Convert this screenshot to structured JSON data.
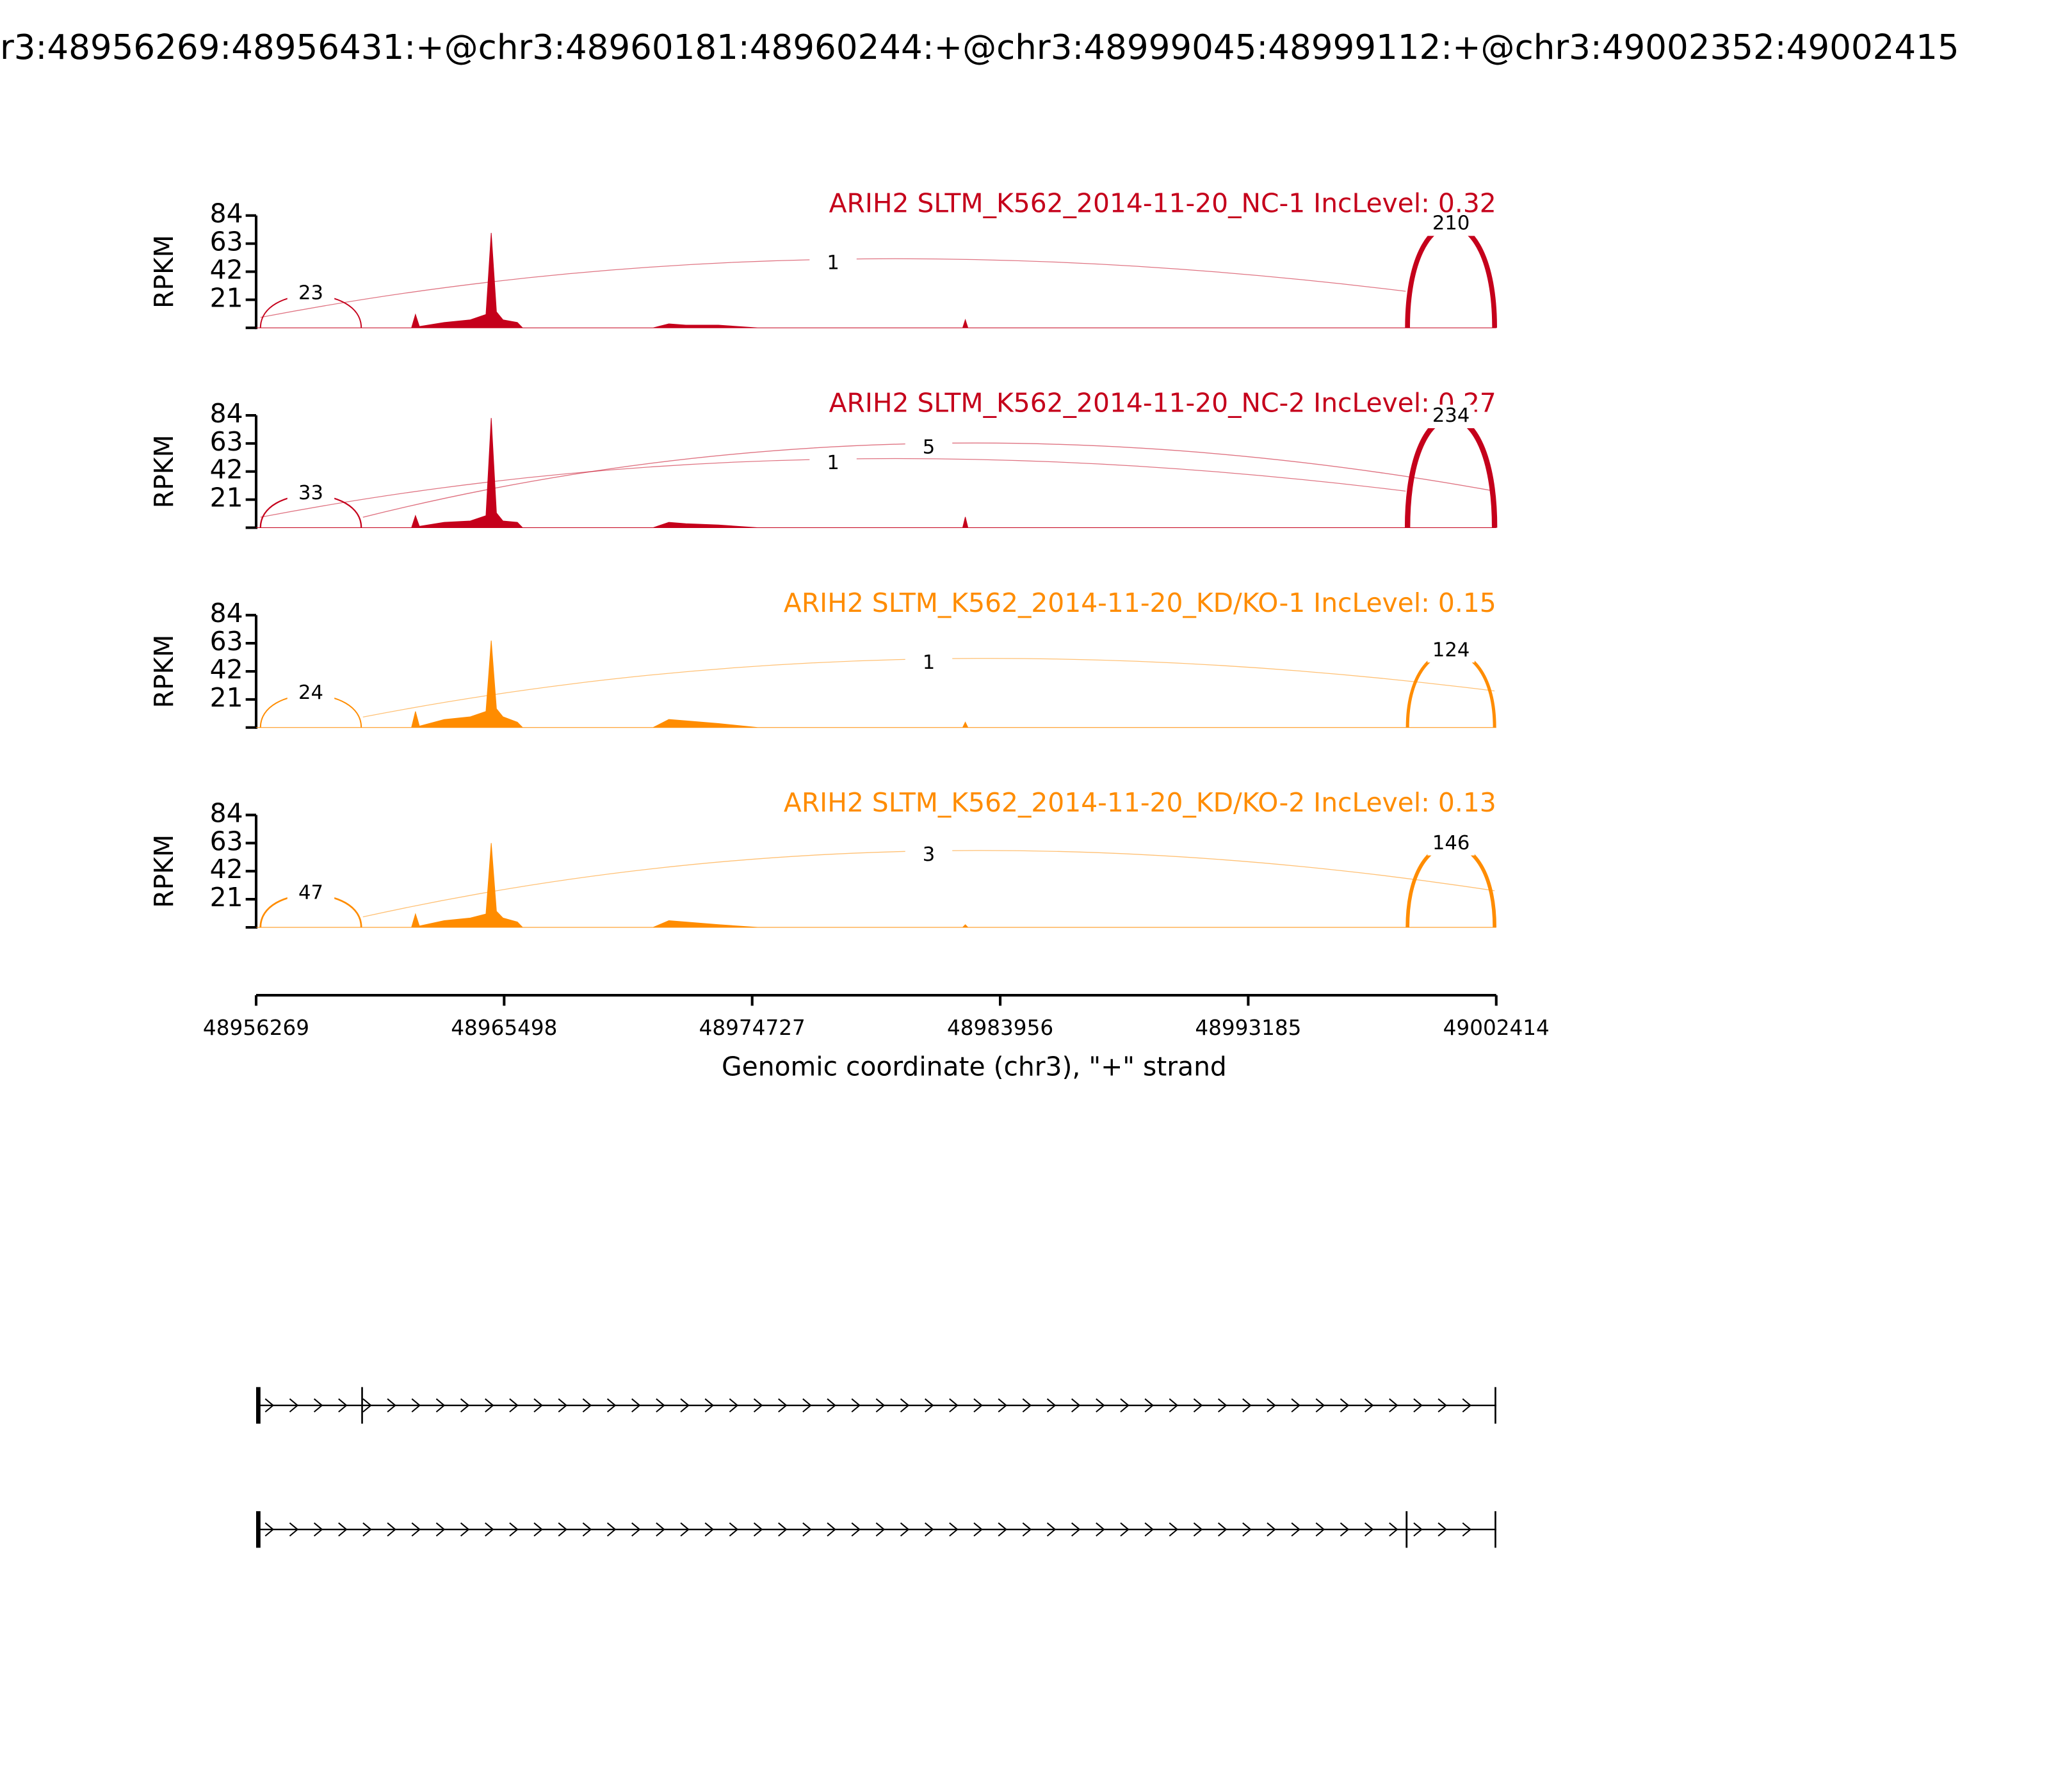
{
  "title": "r3:48956269:48956431:+@chr3:48960181:48960244:+@chr3:48999045:48999112:+@chr3:49002352:49002415",
  "chart_data": [
    {
      "type": "sashimi",
      "title": "ARIH2 SLTM_K562_2014-11-20_NC-1 IncLevel: 0.32",
      "color": "#c5001b",
      "ylabel": "RPKM",
      "ylim": [
        0,
        84
      ],
      "yticks": [
        21,
        42,
        63,
        84
      ],
      "x": [
        48956269,
        48956415,
        48960206,
        48962052,
        48962198,
        48962344,
        48963267,
        48964239,
        48964822,
        48965017,
        48965211,
        48965454,
        48965989,
        48966183,
        48971043,
        48971627,
        48972258,
        48973473,
        48974931,
        48982561,
        48982658,
        48982755,
        48999085,
        49002414
      ],
      "values": [
        0,
        0,
        0,
        0,
        10,
        1,
        4,
        6,
        10,
        71,
        12,
        6,
        4,
        0,
        0,
        3,
        2,
        2,
        0,
        0,
        6,
        0,
        0,
        0
      ],
      "junctions": [
        {
          "start": 48956431,
          "end": 48960181,
          "count": 23
        },
        {
          "start": 48956431,
          "end": 48999045,
          "count": 1
        },
        {
          "start": 48999112,
          "end": 49002352,
          "count": 210
        }
      ]
    },
    {
      "type": "sashimi",
      "title": "ARIH2 SLTM_K562_2014-11-20_NC-2 IncLevel: 0.27",
      "color": "#c5001b",
      "ylabel": "RPKM",
      "ylim": [
        0,
        84
      ],
      "yticks": [
        21,
        42,
        63,
        84
      ],
      "x": [
        48956269,
        48956415,
        48960206,
        48962052,
        48962198,
        48962344,
        48963267,
        48964239,
        48964822,
        48965017,
        48965211,
        48965454,
        48965989,
        48966183,
        48971043,
        48971627,
        48972258,
        48973473,
        48974931,
        48982561,
        48982658,
        48982755,
        48999085,
        49002414
      ],
      "values": [
        0,
        0,
        0,
        0,
        9,
        1,
        4,
        5,
        9,
        82,
        11,
        5,
        4,
        0,
        0,
        4,
        3,
        2,
        0,
        0,
        8,
        0,
        0,
        0
      ],
      "junctions": [
        {
          "start": 48956431,
          "end": 48960181,
          "count": 33
        },
        {
          "start": 48960244,
          "end": 49002352,
          "count": 5
        },
        {
          "start": 48956431,
          "end": 48999045,
          "count": 1
        },
        {
          "start": 48999112,
          "end": 49002352,
          "count": 234
        }
      ]
    },
    {
      "type": "sashimi",
      "title": "ARIH2 SLTM_K562_2014-11-20_KD/KO-1 IncLevel: 0.15",
      "color": "#ff8c00",
      "ylabel": "RPKM",
      "ylim": [
        0,
        84
      ],
      "yticks": [
        21,
        42,
        63,
        84
      ],
      "x": [
        48956269,
        48956415,
        48960206,
        48962052,
        48962198,
        48962344,
        48963267,
        48964239,
        48964822,
        48965017,
        48965211,
        48965454,
        48965989,
        48966183,
        48971043,
        48971627,
        48972258,
        48973473,
        48974931,
        48982561,
        48982658,
        48982755,
        48999085,
        49002414
      ],
      "values": [
        0,
        0,
        0,
        0,
        12,
        1,
        6,
        8,
        12,
        65,
        14,
        8,
        4,
        0,
        0,
        6,
        5,
        3,
        0,
        0,
        4,
        0,
        0,
        0
      ],
      "junctions": [
        {
          "start": 48956431,
          "end": 48960181,
          "count": 24
        },
        {
          "start": 48960244,
          "end": 49002352,
          "count": 1
        },
        {
          "start": 48999112,
          "end": 49002352,
          "count": 124
        }
      ]
    },
    {
      "type": "sashimi",
      "title": "ARIH2 SLTM_K562_2014-11-20_KD/KO-2 IncLevel: 0.13",
      "color": "#ff8c00",
      "ylabel": "RPKM",
      "ylim": [
        0,
        84
      ],
      "yticks": [
        21,
        42,
        63,
        84
      ],
      "x": [
        48956269,
        48956415,
        48960206,
        48962052,
        48962198,
        48962344,
        48963267,
        48964239,
        48964822,
        48965017,
        48965211,
        48965454,
        48965989,
        48966183,
        48971043,
        48971627,
        48972258,
        48973473,
        48974931,
        48982561,
        48982658,
        48982755,
        48999085,
        49002414
      ],
      "values": [
        0,
        0,
        0,
        0,
        10,
        1,
        5,
        7,
        10,
        63,
        12,
        7,
        4,
        0,
        0,
        5,
        4,
        2,
        0,
        0,
        2,
        0,
        0,
        0
      ],
      "junctions": [
        {
          "start": 48956431,
          "end": 48960181,
          "count": 47
        },
        {
          "start": 48960244,
          "end": 49002352,
          "count": 3
        },
        {
          "start": 48999112,
          "end": 49002352,
          "count": 146
        }
      ]
    }
  ],
  "x_axis": {
    "xlim": [
      48956269,
      49002414
    ],
    "xticks": [
      48956269,
      48965498,
      48974727,
      48983956,
      48993185,
      49002414
    ],
    "xlabel": "Genomic coordinate (chr3), \"+\" strand"
  },
  "gene_track": {
    "transcripts": [
      {
        "exons": [
          [
            48956269,
            48956431
          ],
          [
            48960181,
            48960244
          ],
          [
            49002352,
            49002415
          ]
        ]
      },
      {
        "exons": [
          [
            48956269,
            48956431
          ],
          [
            48999045,
            48999112
          ],
          [
            49002352,
            49002415
          ]
        ]
      }
    ]
  }
}
